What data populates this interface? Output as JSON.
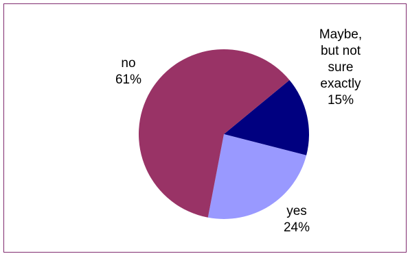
{
  "chart_data": {
    "type": "pie",
    "slices": [
      {
        "label_lines": [
          "Maybe,",
          "but not",
          "sure",
          "exactly"
        ],
        "percent_label": "15%",
        "value": 15,
        "color": "#000080"
      },
      {
        "label_lines": [
          "yes"
        ],
        "percent_label": "24%",
        "value": 24,
        "color": "#9999ff"
      },
      {
        "label_lines": [
          "no"
        ],
        "percent_label": "61%",
        "value": 61,
        "color": "#993366"
      }
    ],
    "start_angle_deg": 39.6,
    "direction": "clockwise",
    "legend": "none",
    "frame_color": "#7f2a6f"
  }
}
